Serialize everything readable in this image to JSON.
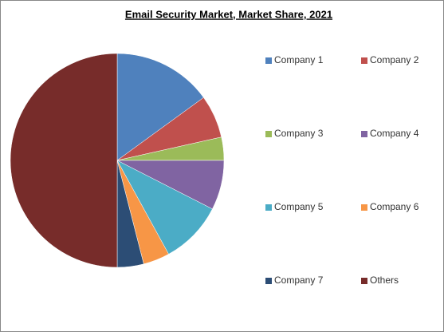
{
  "chart_data": {
    "type": "pie",
    "title": "Email Security Market, Market Share, 2021",
    "categories": [
      "Company 1",
      "Company 2",
      "Company 3",
      "Company 4",
      "Company 5",
      "Company 6",
      "Company 7",
      "Others"
    ],
    "values": [
      15,
      6.5,
      3.5,
      7.5,
      9.5,
      4,
      4,
      50
    ],
    "colors": [
      "#4f81bd",
      "#c0504d",
      "#9bbb59",
      "#8064a2",
      "#4bacc6",
      "#f79646",
      "#2c4d75",
      "#772c2a"
    ],
    "legend": "right"
  }
}
